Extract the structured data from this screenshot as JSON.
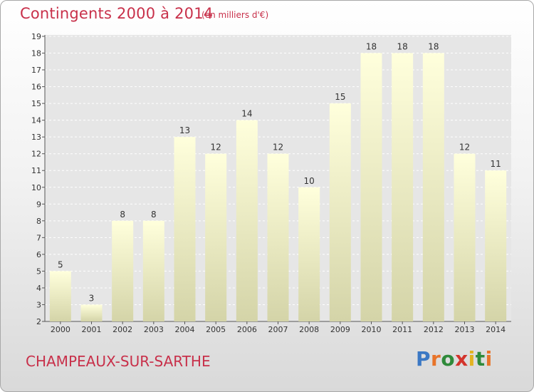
{
  "header": {
    "title": "Contingents 2000 à 2014",
    "subtitle": "(en milliers d'€)"
  },
  "footer": {
    "place": "CHAMPEAUX-SUR-SARTHE",
    "logo_parts": [
      "P",
      "r",
      "o",
      "x",
      "i",
      "t",
      "i"
    ]
  },
  "colors": {
    "title": "#c8304a",
    "bar_top": "#ffffdc",
    "bar_bottom": "#d4d4a8",
    "grid": "#ffffff",
    "plot_bg": "#e6e6e6"
  },
  "chart_data": {
    "type": "bar",
    "title": "Contingents 2000 à 2014",
    "subtitle": "(en milliers d'€)",
    "xlabel": "",
    "ylabel": "",
    "categories": [
      "2000",
      "2001",
      "2002",
      "2003",
      "2004",
      "2005",
      "2006",
      "2007",
      "2008",
      "2009",
      "2010",
      "2011",
      "2012",
      "2013",
      "2014"
    ],
    "values": [
      5,
      3,
      8,
      8,
      13,
      12,
      14,
      12,
      10,
      15,
      18,
      18,
      18,
      12,
      11
    ],
    "ylim": [
      2,
      19
    ],
    "yticks": [
      2,
      3,
      4,
      5,
      6,
      7,
      8,
      9,
      10,
      11,
      12,
      13,
      14,
      15,
      16,
      17,
      18,
      19
    ],
    "grid": true,
    "data_labels": true
  }
}
